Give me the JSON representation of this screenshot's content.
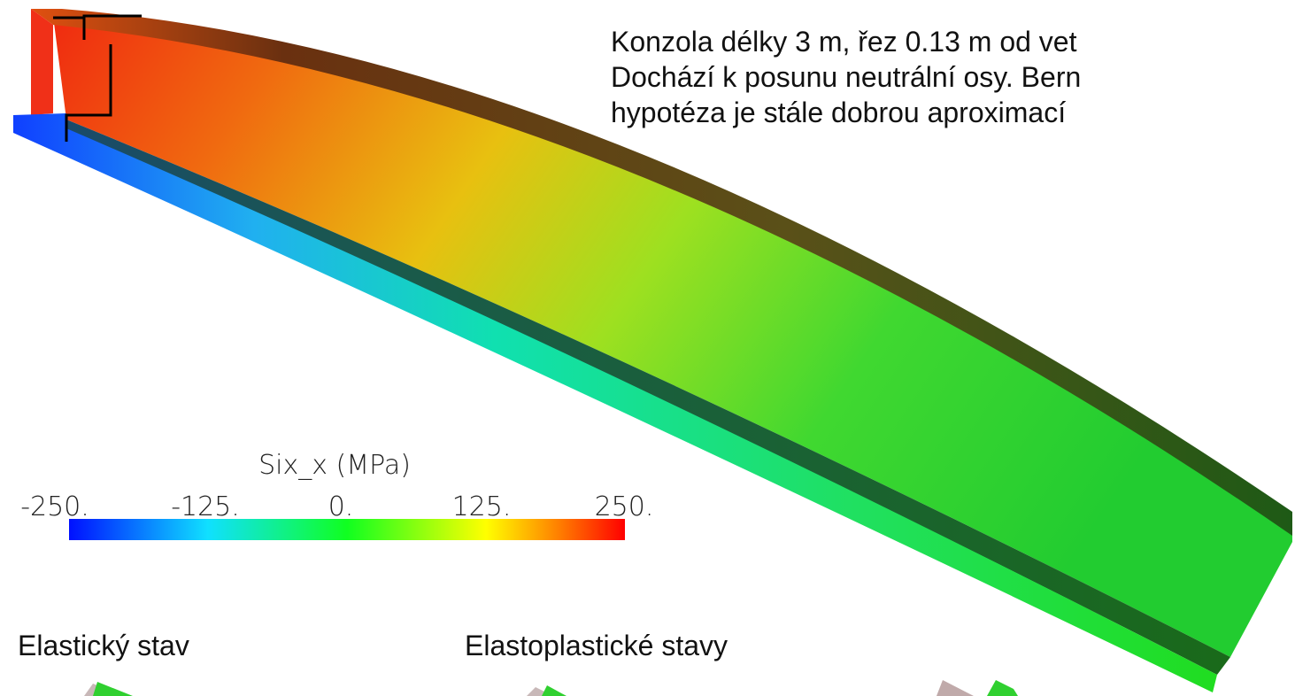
{
  "description": {
    "lines": [
      "Konzola délky 3 m, řez 0.13 m od vet",
      "Dochází k posunu neutrální osy. Bern",
      "hypotéza je stále dobrou aproximací"
    ]
  },
  "colorbar": {
    "title": "Six_x (MPa)",
    "tick_labels": [
      "-250.",
      "-125.",
      "0.",
      "125.",
      "250."
    ]
  },
  "labels": {
    "elastic": "Elastický stav",
    "elastoplastic": "Elastoplastické stavy"
  }
}
